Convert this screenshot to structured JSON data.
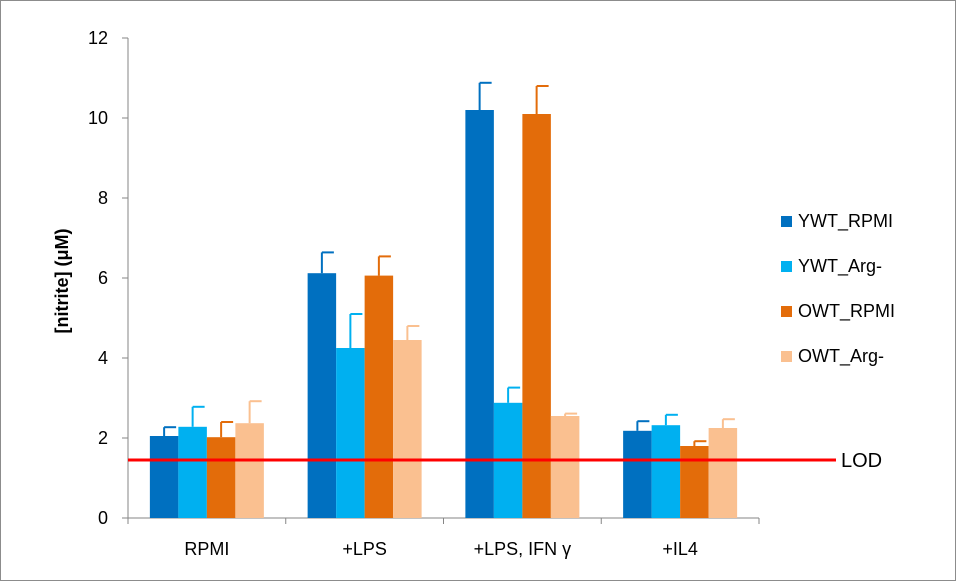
{
  "chart_data": {
    "type": "bar",
    "title": "",
    "xlabel": "",
    "ylabel": "[nitrite] (μM)",
    "ylim": [
      0,
      12
    ],
    "yticks": [
      0,
      2,
      4,
      6,
      8,
      10,
      12
    ],
    "categories": [
      "RPMI",
      "+LPS",
      "+LPS, IFN γ",
      "+IL4"
    ],
    "series": [
      {
        "name": "YWT_RPMI",
        "color": "#0070C0",
        "values": [
          2.05,
          6.12,
          10.2,
          2.18
        ],
        "errors": [
          0.22,
          0.52,
          0.68,
          0.24
        ]
      },
      {
        "name": "YWT_Arg-",
        "color": "#00B0F0",
        "values": [
          2.28,
          4.25,
          2.88,
          2.32
        ],
        "errors": [
          0.5,
          0.85,
          0.38,
          0.26
        ]
      },
      {
        "name": "OWT_RPMI",
        "color": "#E36C0A",
        "values": [
          2.02,
          6.06,
          10.1,
          1.8
        ],
        "errors": [
          0.38,
          0.48,
          0.7,
          0.12
        ]
      },
      {
        "name": "OWT_Arg-",
        "color": "#FAC090",
        "values": [
          2.37,
          4.45,
          2.55,
          2.25
        ],
        "errors": [
          0.55,
          0.35,
          0.06,
          0.22
        ]
      }
    ],
    "reference_line": {
      "label": "LOD",
      "value": 1.45,
      "color": "#FF0000"
    },
    "legend_position": "right",
    "grid": false
  }
}
